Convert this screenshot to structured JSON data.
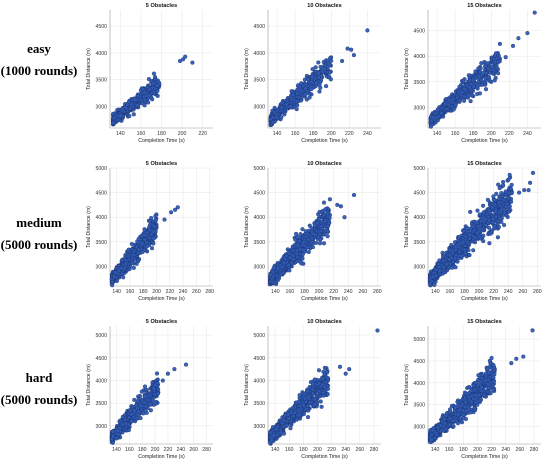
{
  "rows": [
    {
      "difficulty": "easy",
      "rounds": "(1000 rounds)"
    },
    {
      "difficulty": "medium",
      "rounds": "(5000 rounds)"
    },
    {
      "difficulty": "hard",
      "rounds": "(5000 rounds)"
    }
  ],
  "colors": {
    "point_fill": "#2f5bb3",
    "point_edge": "#1b2f6b",
    "grid": "#e6e6e6",
    "axis": "#9a9a9a"
  },
  "chart_data": [
    {
      "type": "scatter",
      "row": 0,
      "title": "5 Obstacles",
      "xlabel": "Completion Time (s)",
      "ylabel": "Total Distance (m)",
      "xlim": [
        130,
        230
      ],
      "ylim": [
        2600,
        4800
      ],
      "xticks": [
        140,
        160,
        180,
        200,
        220
      ],
      "yticks": [
        3000,
        3500,
        4000,
        4500
      ],
      "grid": true,
      "points": {
        "n": 380,
        "x_range": [
          133,
          178
        ],
        "spread": 90,
        "outliers": [
          [
            198,
            3850
          ],
          [
            201,
            3880
          ],
          [
            203,
            3930
          ],
          [
            210,
            3820
          ],
          [
            176,
            3390
          ]
        ]
      }
    },
    {
      "type": "scatter",
      "row": 0,
      "title": "10 Obstacles",
      "xlabel": "Completion Time (s)",
      "ylabel": "Total Distance (m)",
      "xlim": [
        130,
        255
      ],
      "ylim": [
        2600,
        4800
      ],
      "xticks": [
        140,
        160,
        180,
        200,
        220,
        240
      ],
      "yticks": [
        3000,
        3500,
        4000,
        4500
      ],
      "grid": true,
      "points": {
        "n": 420,
        "x_range": [
          133,
          200
        ],
        "spread": 95,
        "outliers": [
          [
            218,
            4080
          ],
          [
            222,
            4060
          ],
          [
            225,
            3960
          ],
          [
            240,
            4420
          ],
          [
            212,
            3850
          ]
        ]
      }
    },
    {
      "type": "scatter",
      "row": 0,
      "title": "15 Obstacles",
      "xlabel": "Completion Time (s)",
      "ylabel": "Total Distance (m)",
      "xlim": [
        130,
        255
      ],
      "ylim": [
        2600,
        4900
      ],
      "xticks": [
        140,
        160,
        180,
        200,
        220,
        240
      ],
      "yticks": [
        3000,
        3500,
        4000,
        4500
      ],
      "grid": true,
      "points": {
        "n": 520,
        "x_range": [
          133,
          210
        ],
        "spread": 100,
        "outliers": [
          [
            230,
            4350
          ],
          [
            240,
            4450
          ],
          [
            248,
            4850
          ],
          [
            224,
            4200
          ],
          [
            216,
            3980
          ]
        ]
      }
    },
    {
      "type": "scatter",
      "row": 1,
      "title": "5 Obstacles",
      "xlabel": "Completion Time (s)",
      "ylabel": "Total Distance (m)",
      "xlim": [
        130,
        285
      ],
      "ylim": [
        2600,
        5000
      ],
      "xticks": [
        140,
        160,
        180,
        200,
        220,
        240,
        260,
        280
      ],
      "yticks": [
        3000,
        3500,
        4000,
        4500,
        5000
      ],
      "grid": true,
      "points": {
        "n": 700,
        "x_range": [
          133,
          200
        ],
        "spread": 105,
        "outliers": [
          [
            222,
            4100
          ],
          [
            228,
            4150
          ],
          [
            232,
            4200
          ],
          [
            212,
            3950
          ]
        ]
      }
    },
    {
      "type": "scatter",
      "row": 1,
      "title": "10 Obstacles",
      "xlabel": "Completion Time (s)",
      "ylabel": "Total Distance (m)",
      "xlim": [
        130,
        285
      ],
      "ylim": [
        2600,
        5000
      ],
      "xticks": [
        140,
        160,
        180,
        200,
        220,
        240,
        260,
        280
      ],
      "yticks": [
        3000,
        3500,
        4000,
        4500,
        5000
      ],
      "grid": true,
      "points": {
        "n": 850,
        "x_range": [
          133,
          215
        ],
        "spread": 110,
        "outliers": [
          [
            225,
            4250
          ],
          [
            230,
            4220
          ],
          [
            248,
            4450
          ],
          [
            235,
            4000
          ]
        ]
      }
    },
    {
      "type": "scatter",
      "row": 1,
      "title": "15 Obstacles",
      "xlabel": "Completion Time (s)",
      "ylabel": "Total Distance (m)",
      "xlim": [
        130,
        285
      ],
      "ylim": [
        2600,
        5000
      ],
      "xticks": [
        140,
        160,
        180,
        200,
        220,
        240,
        260,
        280
      ],
      "yticks": [
        3000,
        3500,
        4000,
        4500,
        5000
      ],
      "grid": true,
      "points": {
        "n": 1000,
        "x_range": [
          133,
          245
        ],
        "spread": 115,
        "outliers": [
          [
            255,
            4500
          ],
          [
            262,
            4550
          ],
          [
            270,
            4700
          ],
          [
            274,
            4900
          ],
          [
            268,
            4550
          ]
        ]
      }
    },
    {
      "type": "scatter",
      "row": 2,
      "title": "5 Obstacles",
      "xlabel": "Completion Time (s)",
      "ylabel": "Total Distance (m)",
      "xlim": [
        130,
        290
      ],
      "ylim": [
        2600,
        5200
      ],
      "xticks": [
        140,
        160,
        180,
        200,
        220,
        240,
        260,
        280
      ],
      "yticks": [
        3000,
        3500,
        4000,
        4500,
        5000
      ],
      "grid": true,
      "points": {
        "n": 650,
        "x_range": [
          133,
          205
        ],
        "spread": 105,
        "outliers": [
          [
            220,
            4150
          ],
          [
            230,
            4250
          ],
          [
            248,
            4350
          ],
          [
            212,
            4000
          ]
        ]
      }
    },
    {
      "type": "scatter",
      "row": 2,
      "title": "10 Obstacles",
      "xlabel": "Completion Time (s)",
      "ylabel": "Total Distance (m)",
      "xlim": [
        130,
        290
      ],
      "ylim": [
        2600,
        5200
      ],
      "xticks": [
        140,
        160,
        180,
        200,
        220,
        240,
        260,
        280
      ],
      "yticks": [
        3000,
        3500,
        4000,
        4500,
        5000
      ],
      "grid": true,
      "points": {
        "n": 800,
        "x_range": [
          133,
          215
        ],
        "spread": 110,
        "outliers": [
          [
            232,
            4300
          ],
          [
            245,
            4250
          ],
          [
            240,
            4150
          ],
          [
            285,
            5100
          ]
        ]
      }
    },
    {
      "type": "scatter",
      "row": 2,
      "title": "15 Obstacles",
      "xlabel": "Completion Time (s)",
      "ylabel": "Total Distance (m)",
      "xlim": [
        130,
        290
      ],
      "ylim": [
        2600,
        5300
      ],
      "xticks": [
        140,
        160,
        180,
        200,
        220,
        240,
        260,
        280
      ],
      "yticks": [
        3000,
        3500,
        4000,
        4500,
        5000
      ],
      "grid": true,
      "points": {
        "n": 900,
        "x_range": [
          133,
          225
        ],
        "spread": 115,
        "outliers": [
          [
            248,
            4450
          ],
          [
            255,
            4550
          ],
          [
            265,
            4600
          ],
          [
            278,
            5200
          ]
        ]
      }
    }
  ]
}
